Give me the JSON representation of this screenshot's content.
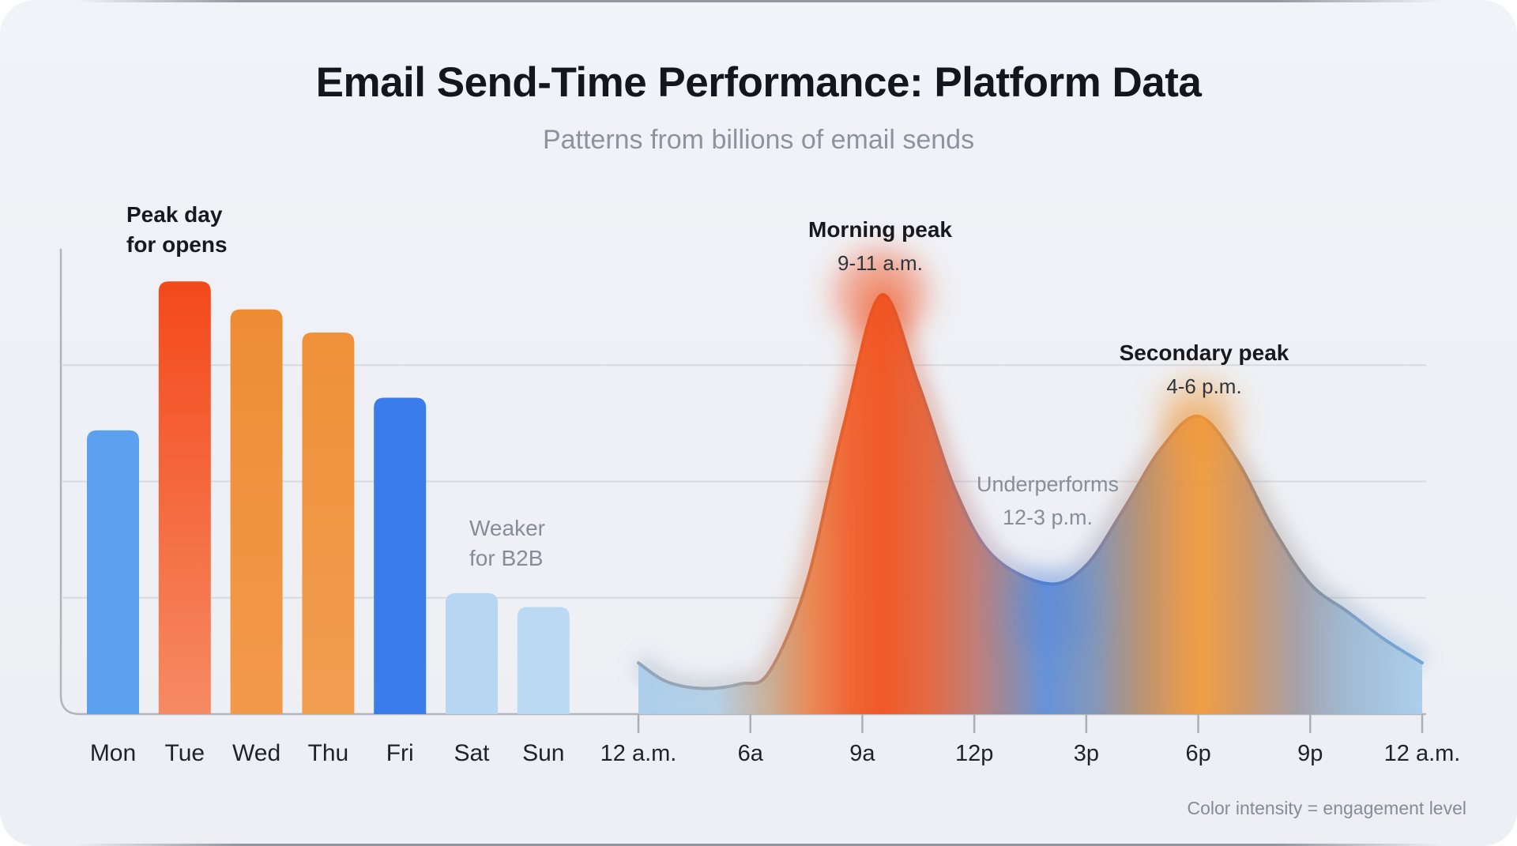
{
  "header": {
    "title": "Email Send-Time Performance: Platform Data",
    "subtitle": "Patterns from billions of email sends"
  },
  "footer": {
    "note": "Color intensity = engagement level"
  },
  "palette": {
    "background": "#eef0f5",
    "grid": "#d7dae1",
    "axis": "#b0b4bd",
    "tick": "#a9aeb8",
    "text_dark": "#17191e",
    "text_gray": "#878c96",
    "label_color": "#1f2228",
    "accent_red_orange": "#f1511d",
    "accent_orange": "#ef9a3b",
    "accent_blue": "#3a7ce9",
    "light_blue": "#b6d6f2"
  },
  "chart_data": [
    {
      "type": "bar",
      "title": "Opens by day of week",
      "categories": [
        "Mon",
        "Tue",
        "Wed",
        "Thu",
        "Fri",
        "Sat",
        "Sun"
      ],
      "values": [
        61,
        93,
        87,
        82,
        68,
        26,
        23
      ],
      "ylim": [
        0,
        100
      ],
      "gridlines": [
        25,
        50,
        75
      ],
      "grid_on": true,
      "bars": [
        {
          "day": "Mon",
          "fill": "#5ba1ef"
        },
        {
          "day": "Tue",
          "gradient": [
            "#f3491b",
            "#f68a62"
          ]
        },
        {
          "day": "Wed",
          "gradient": [
            "#ee8c35",
            "#f29a4b"
          ]
        },
        {
          "day": "Thu",
          "gradient": [
            "#ef9139",
            "#f19d50"
          ]
        },
        {
          "day": "Fri",
          "fill": "#3a7ce9"
        },
        {
          "day": "Sat",
          "fill": "#b6d6f2"
        },
        {
          "day": "Sun",
          "fill": "#bcd9f3"
        }
      ],
      "annotations": [
        {
          "id": "peak-day",
          "line1": "Peak day",
          "line2": "for opens"
        },
        {
          "id": "weaker-b2b",
          "line1": "Weaker",
          "line2": "for B2B"
        }
      ]
    },
    {
      "type": "area",
      "title": "Engagement by hour of day",
      "x_tick_labels": [
        "12 a.m.",
        "6a",
        "9a",
        "12p",
        "3p",
        "6p",
        "9p",
        "12 a.m."
      ],
      "x_tick_hours": [
        0,
        6,
        9,
        12,
        15,
        18,
        21,
        24
      ],
      "ylim": [
        0,
        100
      ],
      "points": [
        [
          0,
          11
        ],
        [
          1.5,
          7
        ],
        [
          3.5,
          5.5
        ],
        [
          5.5,
          6.5
        ],
        [
          6.5,
          9
        ],
        [
          7.5,
          28
        ],
        [
          8.5,
          62
        ],
        [
          9.5,
          90
        ],
        [
          10.5,
          71
        ],
        [
          11.5,
          48
        ],
        [
          12.5,
          34
        ],
        [
          14,
          28
        ],
        [
          15,
          32
        ],
        [
          16,
          44
        ],
        [
          17,
          57
        ],
        [
          18,
          64
        ],
        [
          19,
          55
        ],
        [
          20,
          40
        ],
        [
          21,
          28
        ],
        [
          22,
          22
        ],
        [
          23,
          16
        ],
        [
          24,
          11
        ]
      ],
      "annotations": [
        {
          "id": "morning",
          "title": "Morning peak",
          "range": "9-11 a.m."
        },
        {
          "id": "underperforms",
          "title": "Underperforms",
          "range": "12-3 p.m."
        },
        {
          "id": "secondary",
          "title": "Secondary peak",
          "range": "4-6 p.m."
        }
      ],
      "fill_opacity": 0.95,
      "fill_stops": [
        {
          "o": 0.0,
          "c": "#a9cdec"
        },
        {
          "o": 0.1,
          "c": "#b3cfe6"
        },
        {
          "o": 0.17,
          "c": "#c9ab90"
        },
        {
          "o": 0.22,
          "c": "#e9854e"
        },
        {
          "o": 0.27,
          "c": "#f0602c"
        },
        {
          "o": 0.31,
          "c": "#f1511d"
        },
        {
          "o": 0.37,
          "c": "#e4633a"
        },
        {
          "o": 0.43,
          "c": "#bd7a72"
        },
        {
          "o": 0.48,
          "c": "#8a88a6"
        },
        {
          "o": 0.52,
          "c": "#5f8ed8"
        },
        {
          "o": 0.58,
          "c": "#7d93b8"
        },
        {
          "o": 0.64,
          "c": "#b58f70"
        },
        {
          "o": 0.69,
          "c": "#e2954a"
        },
        {
          "o": 0.72,
          "c": "#f09a3b"
        },
        {
          "o": 0.78,
          "c": "#cc9468"
        },
        {
          "o": 0.84,
          "c": "#a29da5"
        },
        {
          "o": 0.9,
          "c": "#9db7d0"
        },
        {
          "o": 1.0,
          "c": "#a9cdec"
        }
      ],
      "stroke_stops": [
        {
          "o": 0.0,
          "c": "#93a5b8"
        },
        {
          "o": 0.12,
          "c": "#9aa6b2"
        },
        {
          "o": 0.2,
          "c": "#cf7a50"
        },
        {
          "o": 0.27,
          "c": "#ea5c28"
        },
        {
          "o": 0.31,
          "c": "#ed4f1c"
        },
        {
          "o": 0.38,
          "c": "#c96a50"
        },
        {
          "o": 0.45,
          "c": "#97809c"
        },
        {
          "o": 0.52,
          "c": "#4a80d8"
        },
        {
          "o": 0.6,
          "c": "#8f8494"
        },
        {
          "o": 0.68,
          "c": "#d98a48"
        },
        {
          "o": 0.72,
          "c": "#ed9338"
        },
        {
          "o": 0.79,
          "c": "#a08878"
        },
        {
          "o": 0.86,
          "c": "#88919e"
        },
        {
          "o": 0.93,
          "c": "#7da2cc"
        },
        {
          "o": 1.0,
          "c": "#72a6d8"
        }
      ],
      "glows": [
        {
          "h": 9.5,
          "v": 90,
          "r": 58,
          "color": "rgba(241,81,29,0.5)"
        },
        {
          "h": 18,
          "v": 64,
          "r": 50,
          "color": "rgba(240,154,59,0.45)"
        },
        {
          "h": 14,
          "v": 22,
          "r": 55,
          "color": "rgba(74,128,216,0.25)"
        }
      ]
    }
  ]
}
